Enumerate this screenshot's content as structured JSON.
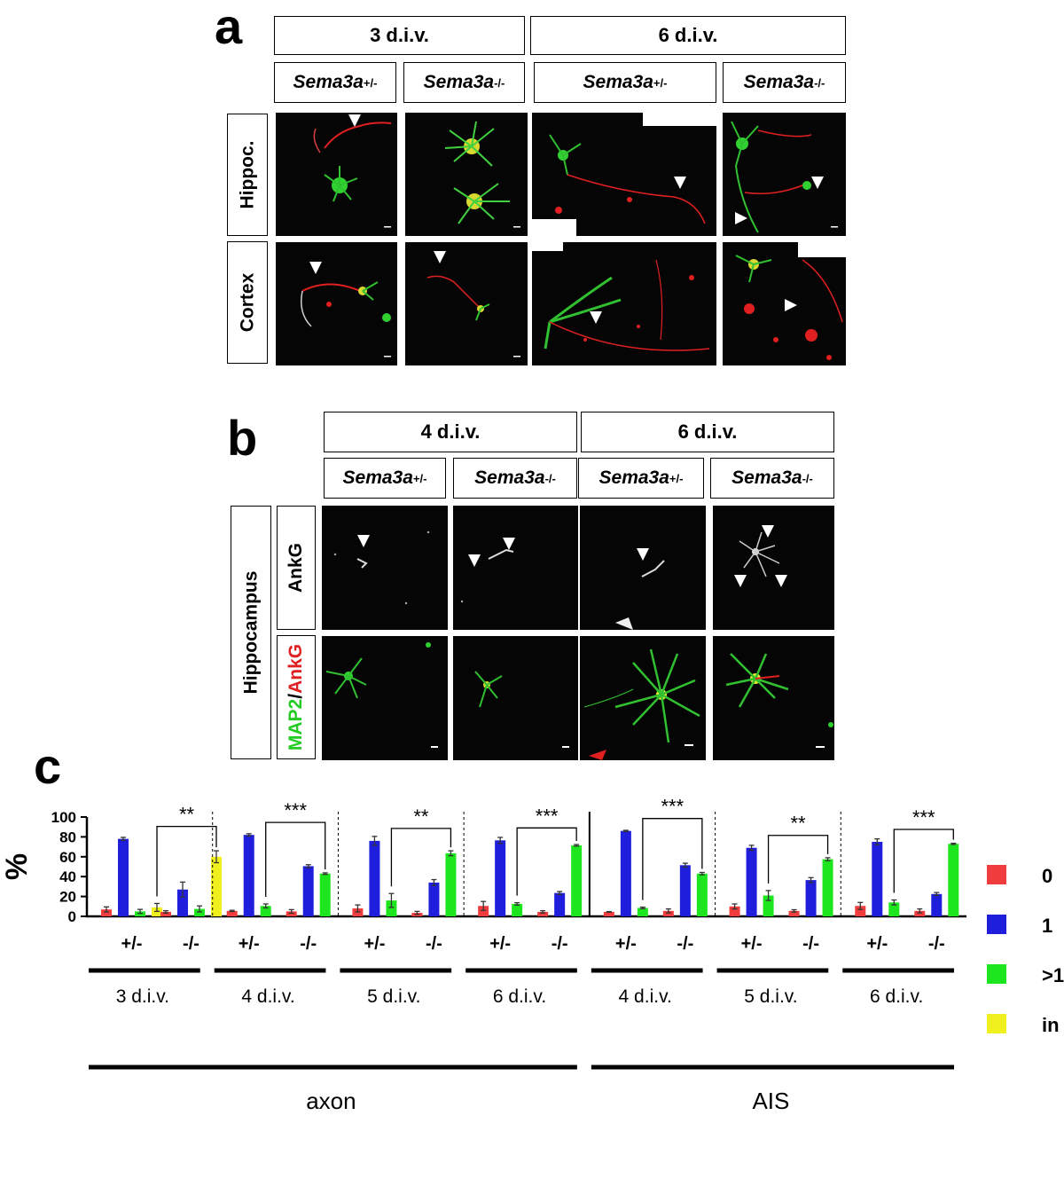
{
  "panel_a": {
    "letter": "a",
    "groups": [
      "3 d.i.v.",
      "6 d.i.v."
    ],
    "genotypes": [
      {
        "base": "Sema3a",
        "sup": "+/-"
      },
      {
        "base": "Sema3a",
        "sup": "-/-"
      },
      {
        "base": "Sema3a",
        "sup": "+/-"
      },
      {
        "base": "Sema3a",
        "sup": "-/-"
      }
    ],
    "rows": [
      "Hippoc.",
      "Cortex"
    ]
  },
  "panel_b": {
    "letter": "b",
    "groups": [
      "4 d.i.v.",
      "6 d.i.v."
    ],
    "genotypes": [
      {
        "base": "Sema3a",
        "sup": "+/-"
      },
      {
        "base": "Sema3a",
        "sup": "-/-"
      },
      {
        "base": "Sema3a",
        "sup": "+/-"
      },
      {
        "base": "Sema3a",
        "sup": "-/-"
      }
    ],
    "region": "Hippocampus",
    "rows": {
      "ankg": "AnkG",
      "map2": "MAP2",
      "slash": "/",
      "ankg2": "AnkG"
    }
  },
  "panel_c": {
    "letter": "c"
  },
  "chart_data": {
    "type": "bar",
    "ylabel": "%",
    "ylim": [
      0,
      100
    ],
    "yticks": [
      0,
      20,
      40,
      60,
      80,
      100
    ],
    "colors": {
      "0": "#f03c3c",
      "1": "#1e1edc",
      ">1": "#1ee61e",
      "in": "#f0f01e"
    },
    "legend": [
      "0",
      "1",
      ">1",
      "in"
    ],
    "legend_position": "right",
    "groups": [
      {
        "label": "3 d.i.v.",
        "category": "axon",
        "genotypes": [
          {
            "label": "+/-",
            "values": {
              "0": 7,
              "1": 78,
              ">1": 5,
              "in": 9
            },
            "errors": {
              "0": 2.5,
              "1": 1.5,
              ">1": 2,
              "in": 4
            }
          },
          {
            "label": "-/-",
            "values": {
              "0": 4.5,
              "1": 27,
              ">1": 7.5,
              "in": 60
            },
            "errors": {
              "0": 1.2,
              "1": 7.5,
              ">1": 3,
              "in": 6
            }
          }
        ],
        "significance": "**",
        "sig_from": "+/-:in",
        "sig_to": "-/-:in"
      },
      {
        "label": "4 d.i.v.",
        "category": "axon",
        "genotypes": [
          {
            "label": "+/-",
            "values": {
              "0": 5.5,
              "1": 82,
              ">1": 10.5
            },
            "errors": {
              "0": 0.6,
              "1": 1.2,
              ">1": 2
            }
          },
          {
            "label": "-/-",
            "values": {
              "0": 5,
              "1": 50.5,
              ">1": 43
            },
            "errors": {
              "0": 1.8,
              "1": 1.5,
              ">1": 0.8
            }
          }
        ],
        "significance": "***"
      },
      {
        "label": "5 d.i.v.",
        "category": "axon",
        "genotypes": [
          {
            "label": "+/-",
            "values": {
              "0": 8,
              "1": 76,
              ">1": 16
            },
            "errors": {
              "0": 3.5,
              "1": 4.5,
              ">1": 7
            }
          },
          {
            "label": "-/-",
            "values": {
              "0": 3.5,
              "1": 34,
              ">1": 63.5
            },
            "errors": {
              "0": 1.5,
              "1": 3,
              ">1": 2.5
            }
          }
        ],
        "significance": "**"
      },
      {
        "label": "6 d.i.v.",
        "category": "axon",
        "genotypes": [
          {
            "label": "+/-",
            "values": {
              "0": 10.5,
              "1": 76.5,
              ">1": 12.5
            },
            "errors": {
              "0": 4.5,
              "1": 3,
              ">1": 1.2
            }
          },
          {
            "label": "-/-",
            "values": {
              "0": 4.5,
              "1": 23.5,
              ">1": 71.5
            },
            "errors": {
              "0": 1.2,
              "1": 1.5,
              ">1": 0.8
            }
          }
        ],
        "significance": "***"
      },
      {
        "label": "4 d.i.v.",
        "category": "AIS",
        "genotypes": [
          {
            "label": "+/-",
            "values": {
              "0": 4.5,
              "1": 86,
              ">1": 8.5
            },
            "errors": {
              "0": 0.3,
              "1": 0.6,
              ">1": 0.8
            }
          },
          {
            "label": "-/-",
            "values": {
              "0": 5.5,
              "1": 51.5,
              ">1": 43
            },
            "errors": {
              "0": 2,
              "1": 2,
              ">1": 1.2
            }
          }
        ],
        "significance": "***"
      },
      {
        "label": "5 d.i.v.",
        "category": "AIS",
        "genotypes": [
          {
            "label": "+/-",
            "values": {
              "0": 10,
              "1": 69,
              ">1": 21
            },
            "errors": {
              "0": 2.5,
              "1": 2.5,
              ">1": 5
            }
          },
          {
            "label": "-/-",
            "values": {
              "0": 5.5,
              "1": 36.5,
              ">1": 57.5
            },
            "errors": {
              "0": 1.2,
              "1": 2.5,
              ">1": 1.5
            }
          }
        ],
        "significance": "**"
      },
      {
        "label": "6 d.i.v.",
        "category": "AIS",
        "genotypes": [
          {
            "label": "+/-",
            "values": {
              "0": 10.5,
              "1": 75,
              ">1": 14
            },
            "errors": {
              "0": 3.5,
              "1": 3,
              ">1": 2.5
            }
          },
          {
            "label": "-/-",
            "values": {
              "0": 5.5,
              "1": 22.5,
              ">1": 73
            },
            "errors": {
              "0": 2,
              "1": 1.5,
              ">1": 0.6
            }
          }
        ],
        "significance": "***"
      }
    ],
    "categories": [
      "axon",
      "AIS"
    ]
  }
}
